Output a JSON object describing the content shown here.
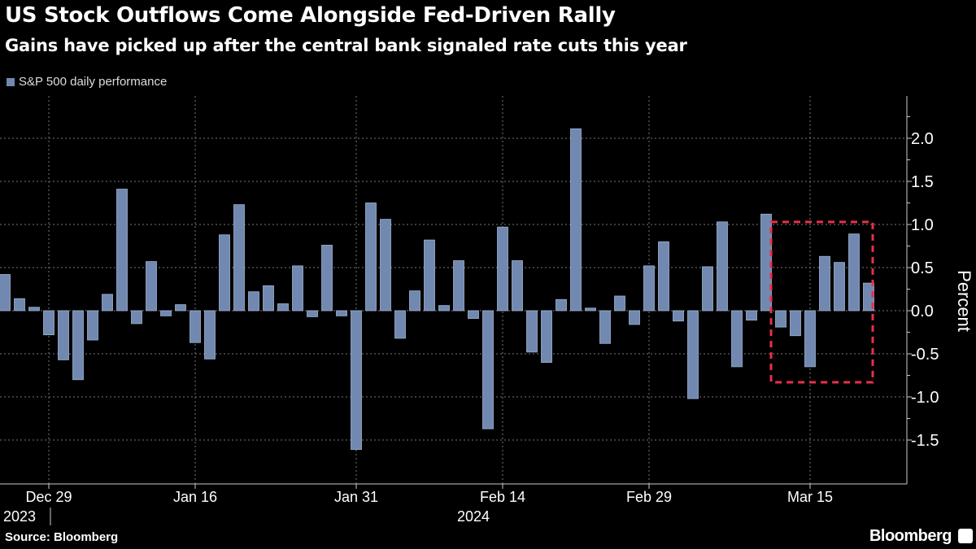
{
  "title": "US Stock Outflows Come Alongside Fed-Driven Rally",
  "subtitle": "Gains have picked up after the central bank signaled rate cuts this year",
  "source": "Source: Bloomberg",
  "brand": "Bloomberg",
  "chart_data": {
    "type": "bar",
    "series": [
      {
        "name": "S&P 500 daily performance",
        "color": "#7189b0",
        "values": [
          0.42,
          0.14,
          0.04,
          -0.28,
          -0.57,
          -0.8,
          -0.34,
          0.19,
          1.41,
          -0.15,
          0.57,
          -0.06,
          0.07,
          -0.37,
          -0.56,
          0.88,
          1.23,
          0.22,
          0.29,
          0.08,
          0.52,
          -0.07,
          0.76,
          -0.06,
          -1.61,
          1.25,
          1.06,
          -0.32,
          0.23,
          0.82,
          0.06,
          0.58,
          -0.09,
          -1.37,
          0.97,
          0.58,
          -0.48,
          -0.6,
          0.13,
          2.11,
          0.03,
          -0.38,
          0.17,
          -0.16,
          0.52,
          0.8,
          -0.12,
          -1.02,
          0.51,
          1.03,
          -0.65,
          -0.11,
          1.12,
          -0.19,
          -0.29,
          -0.65,
          0.63,
          0.56,
          0.89,
          0.32
        ]
      }
    ],
    "x_ticks": [
      {
        "index": 3,
        "label": "Dec 29"
      },
      {
        "index": 13,
        "label": "Jan 16"
      },
      {
        "index": 24,
        "label": "Jan 31"
      },
      {
        "index": 34,
        "label": "Feb 14"
      },
      {
        "index": 44,
        "label": "Feb 29"
      },
      {
        "index": 55,
        "label": "Mar 15"
      }
    ],
    "year_labels": [
      {
        "index": 3,
        "label": "2023"
      },
      {
        "index": 34,
        "label": "2024"
      }
    ],
    "ylabel": "Percent",
    "ylim": [
      -1.9,
      2.5
    ],
    "y_ticks": [
      "-1.5",
      "-1.0",
      "-0.5",
      "0.0",
      "0.5",
      "1.0",
      "1.5",
      "2.0"
    ],
    "y_axis_position": "right",
    "grid": true,
    "legend_position": "top-left",
    "highlight_box": {
      "from_index": 53,
      "to_index": 59,
      "y_range": [
        -0.83,
        1.03
      ],
      "color": "#e8304a"
    }
  }
}
